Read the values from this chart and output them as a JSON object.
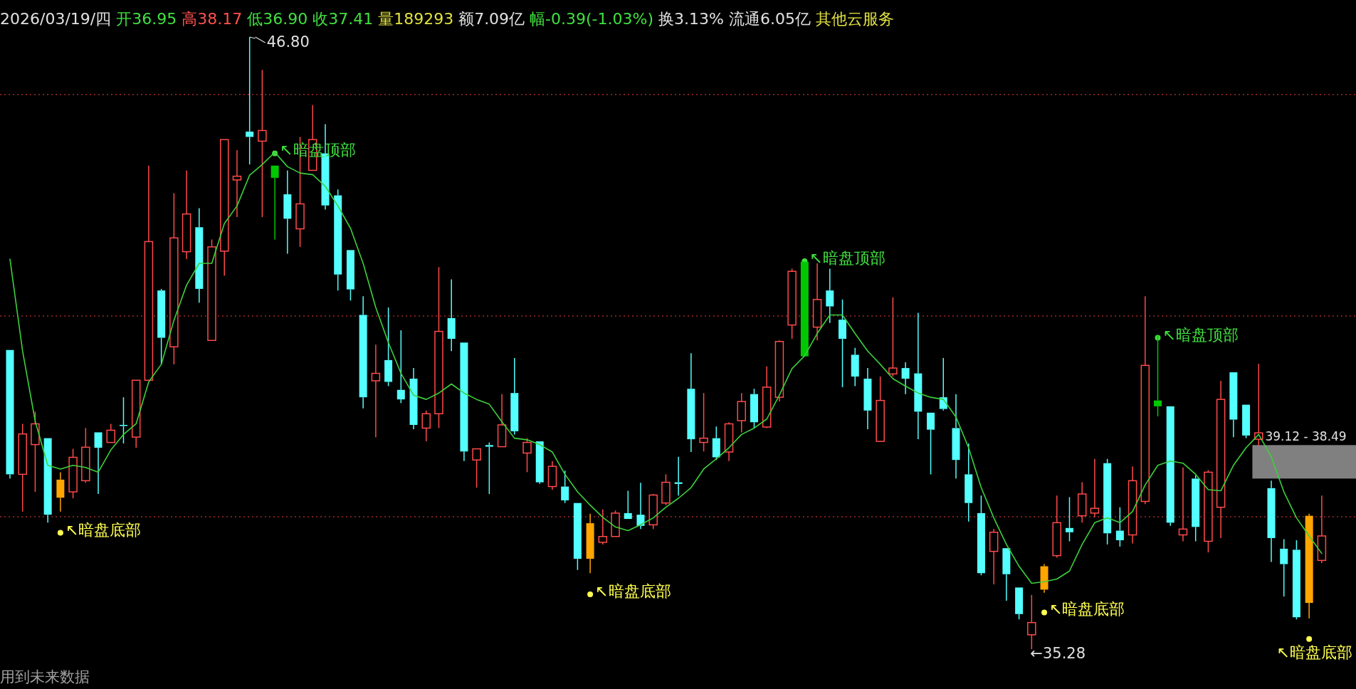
{
  "chart_data": {
    "type": "candlestick",
    "title": "2026/03/19/四 开36.95 高38.17 低36.90 收37.41 量189293 额7.09亿 幅-0.39(-1.03%) 换3.13% 流通6.05亿 其他云服务",
    "categories": [
      null,
      null,
      null,
      null,
      null,
      null,
      null,
      null,
      null,
      null,
      null,
      null,
      null,
      null,
      null,
      null,
      null,
      null,
      null,
      null,
      null,
      null,
      null,
      null,
      null,
      null,
      null,
      null,
      null,
      null,
      null,
      null,
      null,
      null,
      null,
      null,
      null,
      null,
      null,
      null,
      null,
      null,
      null,
      null,
      null,
      null,
      null,
      null,
      null,
      null,
      null,
      null,
      null,
      null,
      null,
      null,
      null,
      null,
      null,
      null,
      null,
      null,
      null,
      null,
      null,
      null,
      null,
      null,
      null,
      null,
      null,
      null,
      null,
      null,
      null,
      null,
      null,
      null,
      null,
      null,
      null,
      null,
      null,
      null,
      null,
      null,
      null,
      null,
      null,
      null,
      null,
      null,
      null,
      null,
      null,
      null,
      null,
      null,
      null,
      null,
      null,
      null,
      null,
      null,
      null
    ],
    "ohlc": [
      [
        40.91,
        40.91,
        38.49,
        38.57
      ],
      [
        38.57,
        39.52,
        37.87,
        39.33
      ],
      [
        39.13,
        39.75,
        38.24,
        39.52
      ],
      [
        39.25,
        39.25,
        37.66,
        37.81
      ],
      [
        38.13,
        38.61,
        37.87,
        38.47
      ],
      [
        38.24,
        39.05,
        38.12,
        38.89
      ],
      [
        38.45,
        39.44,
        38.41,
        39.08
      ],
      [
        39.36,
        39.36,
        38.2,
        39.07
      ],
      [
        39.17,
        39.52,
        39.17,
        39.4
      ],
      [
        39.5,
        40.02,
        39.15,
        39.48
      ],
      [
        39.27,
        40.34,
        39.07,
        40.34
      ],
      [
        40.34,
        44.38,
        40.34,
        42.95
      ],
      [
        42.03,
        42.06,
        40.64,
        41.14
      ],
      [
        40.97,
        43.86,
        40.64,
        43.02
      ],
      [
        42.76,
        44.29,
        42.62,
        43.47
      ],
      [
        43.22,
        43.58,
        41.8,
        42.06
      ],
      [
        41.09,
        42.99,
        41.09,
        42.85
      ],
      [
        42.77,
        44.87,
        42.31,
        44.87
      ],
      [
        44.11,
        44.67,
        43.41,
        44.18
      ],
      [
        45.02,
        46.8,
        44.4,
        44.92
      ],
      [
        44.84,
        46.18,
        43.41,
        45.04
      ],
      [
        44.38,
        44.38,
        42.99,
        44.15
      ],
      [
        43.84,
        44.29,
        42.72,
        43.38
      ],
      [
        43.19,
        44.92,
        42.85,
        43.66
      ],
      [
        44.29,
        45.52,
        44.29,
        44.87
      ],
      [
        44.61,
        45.16,
        43.55,
        43.63
      ],
      [
        43.82,
        43.93,
        42.03,
        42.33
      ],
      [
        42.79,
        42.79,
        41.84,
        42.05
      ],
      [
        41.57,
        41.92,
        39.81,
        40.02
      ],
      [
        40.33,
        41.01,
        39.27,
        40.47
      ],
      [
        40.72,
        41.71,
        40.23,
        40.31
      ],
      [
        40.16,
        41.28,
        39.91,
        39.98
      ],
      [
        40.37,
        40.57,
        39.42,
        39.5
      ],
      [
        39.44,
        39.77,
        39.19,
        39.71
      ],
      [
        39.71,
        42.47,
        39.44,
        41.26
      ],
      [
        41.51,
        42.24,
        40.89,
        41.12
      ],
      [
        41.05,
        41.05,
        38.82,
        39.0
      ],
      [
        38.84,
        39.05,
        38.32,
        39.05
      ],
      [
        39.12,
        39.17,
        38.2,
        39.09
      ],
      [
        39.09,
        40.08,
        39.09,
        39.5
      ],
      [
        40.1,
        40.76,
        39.32,
        39.38
      ],
      [
        38.97,
        39.25,
        38.61,
        39.17
      ],
      [
        39.19,
        39.19,
        38.39,
        38.42
      ],
      [
        38.34,
        38.82,
        38.28,
        38.72
      ],
      [
        38.34,
        38.64,
        38.03,
        38.08
      ],
      [
        38.03,
        38.03,
        36.77,
        36.98
      ],
      [
        36.98,
        37.83,
        36.71,
        37.65
      ],
      [
        37.29,
        37.91,
        37.25,
        37.4
      ],
      [
        37.4,
        37.89,
        37.4,
        37.84
      ],
      [
        37.84,
        38.26,
        37.73,
        37.73
      ],
      [
        37.81,
        38.41,
        37.54,
        37.6
      ],
      [
        37.62,
        38.2,
        37.54,
        38.18
      ],
      [
        38.03,
        38.57,
        37.99,
        38.42
      ],
      [
        38.42,
        38.9,
        38.17,
        38.39
      ],
      [
        40.18,
        40.85,
        38.99,
        39.23
      ],
      [
        39.17,
        40.1,
        39.0,
        39.25
      ],
      [
        39.25,
        39.47,
        38.84,
        38.89
      ],
      [
        38.99,
        39.55,
        38.82,
        39.52
      ],
      [
        39.58,
        40.1,
        39.36,
        39.94
      ],
      [
        40.08,
        40.18,
        39.44,
        39.55
      ],
      [
        39.46,
        40.6,
        39.44,
        40.21
      ],
      [
        40.02,
        41.09,
        39.94,
        41.07
      ],
      [
        41.38,
        42.44,
        41.12,
        42.39
      ],
      [
        42.57,
        42.57,
        40.79,
        40.79
      ],
      [
        41.34,
        42.54,
        41.09,
        41.86
      ],
      [
        42.03,
        42.44,
        41.42,
        41.73
      ],
      [
        41.48,
        41.86,
        40.21,
        41.12
      ],
      [
        40.82,
        40.95,
        40.23,
        40.41
      ],
      [
        40.37,
        40.57,
        39.42,
        39.77
      ],
      [
        39.19,
        40.41,
        39.19,
        39.96
      ],
      [
        40.46,
        41.9,
        40.41,
        40.57
      ],
      [
        40.57,
        40.68,
        40.08,
        40.37
      ],
      [
        40.47,
        41.61,
        39.23,
        39.75
      ],
      [
        39.73,
        39.73,
        38.57,
        39.41
      ],
      [
        40.02,
        40.76,
        39.77,
        39.8
      ],
      [
        39.44,
        40.08,
        38.49,
        38.84
      ],
      [
        38.57,
        39.15,
        37.68,
        38.03
      ],
      [
        37.84,
        38.17,
        36.67,
        36.71
      ],
      [
        37.12,
        37.54,
        36.5,
        37.48
      ],
      [
        37.18,
        37.18,
        36.19,
        36.69
      ],
      [
        36.44,
        36.44,
        35.84,
        35.94
      ],
      [
        35.55,
        36.3,
        35.28,
        35.78
      ],
      [
        36.4,
        36.88,
        36.34,
        36.84
      ],
      [
        37.04,
        38.17,
        37.0,
        37.66
      ],
      [
        37.56,
        38.14,
        37.31,
        37.48
      ],
      [
        37.79,
        38.42,
        37.66,
        38.2
      ],
      [
        37.84,
        38.86,
        37.76,
        37.93
      ],
      [
        38.78,
        38.86,
        37.25,
        37.46
      ],
      [
        37.51,
        37.95,
        37.21,
        37.33
      ],
      [
        37.43,
        38.72,
        37.27,
        38.45
      ],
      [
        38.06,
        41.92,
        38.01,
        40.62
      ],
      [
        39.96,
        41.18,
        39.66,
        39.85
      ],
      [
        39.85,
        39.85,
        37.6,
        37.66
      ],
      [
        37.43,
        38.7,
        37.31,
        37.54
      ],
      [
        38.49,
        38.55,
        37.31,
        37.58
      ],
      [
        37.31,
        38.65,
        37.1,
        38.61
      ],
      [
        37.95,
        40.33,
        37.37,
        39.98
      ],
      [
        40.49,
        40.49,
        39.27,
        39.6
      ],
      [
        39.88,
        39.88,
        39.25,
        39.3
      ],
      [
        39.23,
        40.65,
        39.11,
        39.35
      ],
      [
        38.31,
        38.45,
        36.92,
        37.37
      ],
      [
        37.17,
        37.35,
        36.27,
        36.88
      ],
      [
        37.15,
        37.33,
        35.84,
        35.88
      ],
      [
        36.15,
        37.83,
        35.86,
        37.79
      ],
      [
        36.95,
        38.17,
        36.9,
        37.41
      ]
    ],
    "colors": [
      null,
      null,
      null,
      null,
      "#ffa500",
      null,
      null,
      null,
      null,
      null,
      null,
      null,
      null,
      null,
      null,
      null,
      null,
      null,
      null,
      null,
      null,
      "#00c800",
      null,
      null,
      null,
      null,
      null,
      null,
      null,
      null,
      null,
      null,
      null,
      null,
      null,
      null,
      null,
      null,
      null,
      null,
      null,
      null,
      null,
      null,
      null,
      null,
      "#ffa500",
      null,
      null,
      null,
      null,
      null,
      null,
      null,
      null,
      null,
      null,
      null,
      null,
      null,
      null,
      null,
      null,
      "#00c800",
      null,
      null,
      null,
      null,
      null,
      null,
      null,
      null,
      null,
      null,
      null,
      null,
      null,
      null,
      null,
      null,
      null,
      null,
      "#ffa500",
      null,
      null,
      null,
      null,
      null,
      null,
      null,
      null,
      "#00c800",
      null,
      null,
      null,
      null,
      null,
      null,
      null,
      null,
      null,
      null,
      null,
      "#ffa500",
      null
    ],
    "series": [
      {
        "type": "line",
        "color": "#3cd03c",
        "values": [
          42.62,
          40.89,
          39.57,
          38.74,
          38.67,
          38.74,
          38.7,
          38.61,
          39.03,
          39.32,
          39.52,
          40.31,
          40.64,
          41.47,
          42.13,
          42.54,
          42.54,
          43.29,
          43.62,
          44.2,
          44.4,
          44.63,
          44.36,
          44.24,
          44.21,
          43.99,
          43.62,
          43.2,
          42.54,
          41.71,
          41.05,
          40.47,
          40.06,
          39.98,
          40.1,
          40.27,
          40.1,
          39.98,
          39.89,
          39.56,
          39.25,
          39.22,
          39.13,
          38.99,
          38.57,
          38.24,
          37.99,
          37.76,
          37.58,
          37.51,
          37.62,
          37.75,
          37.95,
          38.12,
          38.32,
          38.67,
          38.86,
          39.07,
          39.32,
          39.44,
          39.61,
          40.06,
          40.56,
          40.8,
          41.22,
          41.57,
          41.57,
          41.22,
          40.89,
          40.64,
          40.37,
          40.23,
          40.1,
          40.02,
          39.98,
          39.65,
          39.07,
          38.32,
          37.75,
          37.25,
          36.84,
          36.52,
          36.55,
          36.6,
          36.75,
          37.25,
          37.66,
          37.75,
          37.66,
          37.87,
          38.37,
          38.74,
          38.82,
          38.78,
          38.57,
          38.28,
          38.26,
          38.74,
          39.07,
          39.32,
          38.9,
          38.24,
          37.75,
          37.41,
          37.08
        ]
      },
      {
        "type": "scatter",
        "name": "↖暗盘顶部",
        "color": "#40e040",
        "values": [
          null,
          null,
          null,
          null,
          null,
          null,
          null,
          null,
          null,
          null,
          null,
          null,
          null,
          null,
          null,
          null,
          null,
          null,
          null,
          null,
          null,
          44.61,
          null,
          null,
          null,
          null,
          null,
          null,
          null,
          null,
          null,
          null,
          null,
          null,
          null,
          null,
          null,
          null,
          null,
          null,
          null,
          null,
          null,
          null,
          null,
          null,
          null,
          null,
          null,
          null,
          null,
          null,
          null,
          null,
          null,
          null,
          null,
          null,
          null,
          null,
          null,
          null,
          null,
          42.58,
          null,
          null,
          null,
          null,
          null,
          null,
          null,
          null,
          null,
          null,
          null,
          null,
          null,
          null,
          null,
          null,
          null,
          null,
          null,
          null,
          null,
          null,
          null,
          null,
          null,
          null,
          null,
          41.14,
          null,
          null,
          null,
          null,
          null,
          null,
          null,
          null,
          null,
          null,
          null,
          null,
          null
        ]
      },
      {
        "type": "scatter",
        "name": "↖暗盘底部",
        "color": "#ffff50",
        "values": [
          null,
          null,
          null,
          null,
          37.47,
          null,
          null,
          null,
          null,
          null,
          null,
          null,
          null,
          null,
          null,
          null,
          null,
          null,
          null,
          null,
          null,
          null,
          null,
          null,
          null,
          null,
          null,
          null,
          null,
          null,
          null,
          null,
          null,
          null,
          null,
          null,
          null,
          null,
          null,
          null,
          null,
          null,
          null,
          null,
          null,
          null,
          36.31,
          null,
          null,
          null,
          null,
          null,
          null,
          null,
          null,
          null,
          null,
          null,
          null,
          null,
          null,
          null,
          null,
          null,
          null,
          null,
          null,
          null,
          null,
          null,
          null,
          null,
          null,
          null,
          null,
          null,
          null,
          null,
          null,
          null,
          null,
          null,
          35.97,
          null,
          null,
          null,
          null,
          null,
          null,
          null,
          null,
          null,
          null,
          null,
          null,
          null,
          null,
          null,
          null,
          null,
          null,
          null,
          null,
          35.47,
          null
        ]
      }
    ],
    "ref_lines": [
      {
        "axis": "y",
        "value": 45.72,
        "color": "#a02828",
        "line_style": "dotted"
      },
      {
        "axis": "y",
        "value": 41.55,
        "color": "#a02828",
        "line_style": "dotted"
      },
      {
        "axis": "y",
        "value": 37.77,
        "color": "#a02828",
        "line_style": "dotted"
      }
    ],
    "bands": [
      {
        "axis": "y",
        "from": 38.49,
        "to": 39.12,
        "label": "39.12 - 38.49",
        "color": "#808080"
      }
    ],
    "annotations": [
      "46.80",
      "←35.28",
      "用到未来数据"
    ]
  }
}
